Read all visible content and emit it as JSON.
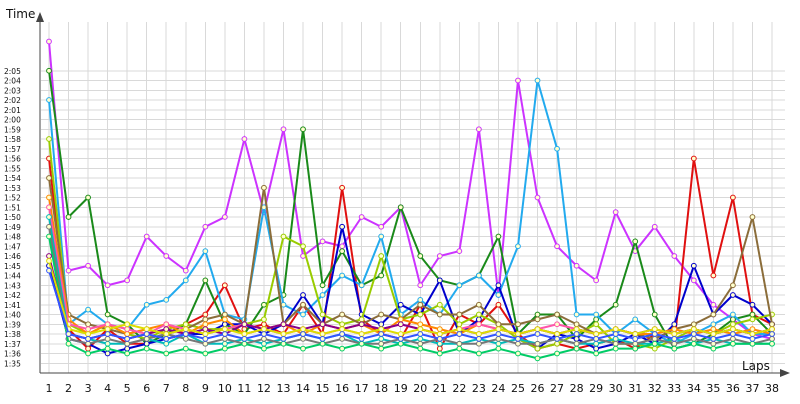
{
  "chart_data": {
    "type": "line",
    "ylabel": "Time",
    "xlabel": "Laps",
    "x": [
      1,
      2,
      3,
      4,
      5,
      6,
      7,
      8,
      9,
      10,
      11,
      12,
      13,
      14,
      15,
      16,
      17,
      18,
      19,
      20,
      21,
      22,
      23,
      24,
      25,
      26,
      27,
      28,
      29,
      30,
      31,
      32,
      33,
      34,
      35,
      36,
      37,
      38
    ],
    "xlim": [
      1,
      38
    ],
    "y_units": "seconds",
    "ylim": [
      94,
      130
    ],
    "y_tick_values": [
      95,
      96,
      97,
      98,
      99,
      100,
      101,
      102,
      103,
      104,
      105,
      106,
      107,
      108,
      109,
      110,
      111,
      112,
      113,
      114,
      115,
      116,
      117,
      118,
      119,
      120,
      121,
      122,
      123,
      124,
      125
    ],
    "y_tick_labels": [
      "1:35",
      "1:36",
      "1:37",
      "1:38",
      "1:39",
      "1:40",
      "1:41",
      "1:42",
      "1:43",
      "1:44",
      "1:45",
      "1:46",
      "1:47",
      "1:48",
      "1:49",
      "1:50",
      "1:51",
      "1:52",
      "1:53",
      "1:54",
      "1:55",
      "1:56",
      "1:57",
      "1:58",
      "1:59",
      "2:00",
      "2:01",
      "2:02",
      "2:03",
      "2:04",
      "2:05"
    ],
    "grid": true,
    "legend": "none",
    "series": [
      {
        "color": "#cc33ff",
        "values": [
          128,
          104.5,
          105,
          103,
          103.5,
          108,
          106,
          104.5,
          109,
          110,
          118,
          110.5,
          119,
          106,
          107.5,
          107,
          110,
          109,
          111,
          103,
          106,
          106.5,
          119,
          102,
          124,
          112,
          107,
          105,
          103.5,
          110.5,
          106.5,
          109,
          106,
          103.5,
          101,
          99.5,
          98,
          97.5
        ]
      },
      {
        "color": "#e01010",
        "values": [
          116,
          98.5,
          96.5,
          98.5,
          97,
          97,
          98,
          99,
          100,
          103,
          98.5,
          99,
          98,
          101,
          98,
          113,
          99.5,
          98,
          97.5,
          101,
          96.5,
          100,
          99,
          101,
          98,
          96.5,
          97,
          96.5,
          97,
          97.5,
          96.5,
          98,
          97,
          116,
          104,
          112,
          100,
          99
        ]
      },
      {
        "color": "#1a8a1a",
        "values": [
          125,
          110,
          112,
          100,
          99,
          97,
          98,
          99,
          103.5,
          99,
          98,
          101,
          102,
          119,
          103,
          106.5,
          103,
          104,
          111,
          106,
          103.5,
          103,
          104,
          108,
          98,
          100,
          100,
          97.5,
          99.5,
          101,
          107.5,
          100,
          96.5,
          97,
          98,
          99.5,
          100,
          98
        ]
      },
      {
        "color": "#22aaee",
        "values": [
          122,
          99,
          100.5,
          99,
          98.5,
          101,
          101.5,
          103.5,
          106.5,
          100,
          99.5,
          111,
          101,
          100,
          102,
          104,
          103,
          108,
          100,
          101.5,
          100,
          103,
          104,
          102,
          107,
          124,
          117,
          100,
          100,
          98,
          99.5,
          98,
          97,
          98,
          99,
          100,
          98,
          98
        ]
      },
      {
        "color": "#0000cc",
        "values": [
          105,
          97.5,
          97,
          96,
          96.5,
          97,
          97.5,
          98,
          98,
          99,
          99,
          98,
          99,
          102,
          99,
          109,
          100,
          99,
          101,
          100,
          103.5,
          98,
          99.5,
          103,
          97.5,
          96.5,
          98,
          97.5,
          96.5,
          97,
          98,
          97,
          99,
          105,
          100,
          102,
          101,
          99
        ]
      },
      {
        "color": "#99cc00",
        "values": [
          118,
          99,
          98,
          99,
          98,
          97.5,
          98.5,
          99,
          98.5,
          98.5,
          99,
          99.5,
          108,
          107,
          100,
          99,
          99.5,
          106,
          99.5,
          100,
          101,
          99,
          100,
          99,
          97.5,
          96.5,
          97,
          98,
          99,
          97,
          97,
          96.5,
          97.5,
          98.5,
          98,
          99,
          99.5,
          100
        ]
      },
      {
        "color": "#8b6d3a",
        "values": [
          114,
          100,
          99,
          98.5,
          98,
          98.5,
          98,
          98.5,
          99.5,
          100,
          99,
          113,
          99,
          101,
          99,
          100,
          99,
          100,
          99.5,
          101,
          100,
          100,
          101,
          99,
          99,
          99.5,
          100,
          99,
          98,
          98.5,
          98,
          97.5,
          98.5,
          99,
          100,
          103,
          110,
          99
        ]
      },
      {
        "color": "#ff8800",
        "values": [
          112,
          99.5,
          98,
          99,
          98,
          98.5,
          99,
          98,
          99,
          99.5,
          98,
          98.5,
          99,
          98,
          99,
          98.5,
          99,
          98,
          99.5,
          99,
          98.5,
          98,
          99,
          98.5,
          98,
          98.5,
          98,
          98.5,
          98,
          98.5,
          98,
          98,
          98.5,
          98,
          98.5,
          98,
          98.5,
          98
        ]
      },
      {
        "color": "#ff55aa",
        "values": [
          111,
          99,
          98.5,
          99,
          98.5,
          98,
          99,
          98.5,
          98,
          98.5,
          99,
          98.5,
          98,
          98.5,
          98,
          98.5,
          98,
          98.5,
          99,
          98.5,
          98,
          98.5,
          99,
          98.5,
          98,
          98.5,
          99,
          98.5,
          98,
          98.5,
          98,
          98.5,
          98,
          98.5,
          98,
          98.5,
          98,
          98.5
        ]
      },
      {
        "color": "#00bbbb",
        "values": [
          110,
          98,
          97.5,
          97,
          97,
          97.5,
          97,
          98,
          97,
          97,
          97.5,
          97,
          97.5,
          98,
          97.5,
          98,
          97,
          97.5,
          97,
          97.5,
          97,
          97,
          97.5,
          97,
          97.5,
          97,
          97.5,
          97,
          97,
          97.5,
          97,
          97,
          97.5,
          97,
          97.5,
          97,
          97,
          97
        ]
      },
      {
        "color": "#777777",
        "values": [
          109,
          97.5,
          97,
          97.5,
          97,
          97.5,
          98,
          97.5,
          97,
          97.5,
          97,
          97.5,
          97,
          97.5,
          97,
          97.5,
          97,
          97,
          97.5,
          97,
          97.5,
          97,
          97,
          97.5,
          97,
          97,
          97.5,
          97,
          97.5,
          97,
          97,
          97.5,
          97,
          97.5,
          97,
          97.5,
          97,
          97.5
        ]
      },
      {
        "color": "#00cc66",
        "values": [
          108,
          97,
          96,
          96.5,
          96,
          96.5,
          96,
          96.5,
          96,
          96.5,
          97,
          96.5,
          97,
          96.5,
          97,
          96.5,
          97,
          96.5,
          97,
          96.5,
          96,
          96.5,
          96,
          96.5,
          96,
          95.5,
          96,
          96.5,
          96,
          96.5,
          96.5,
          97,
          96.5,
          97,
          96.5,
          97,
          97,
          97
        ]
      },
      {
        "color": "#880088",
        "values": [
          106,
          98,
          97.5,
          98,
          97.5,
          98,
          98.5,
          98,
          98.5,
          98,
          99,
          98.5,
          99,
          98.5,
          99,
          98.5,
          99,
          98.5,
          99,
          98.5,
          98,
          98.5,
          98,
          98.5,
          98,
          98.5,
          98,
          98.5,
          98,
          98.5,
          98,
          98.5,
          98,
          98.5,
          98,
          98.5,
          98,
          98.5
        ]
      },
      {
        "color": "#dddd00",
        "values": [
          105.5,
          98.5,
          98,
          98.5,
          99,
          98.5,
          98,
          98.5,
          98,
          98.5,
          98,
          98.5,
          98,
          98.5,
          98,
          98.5,
          98,
          98.5,
          98,
          98.5,
          98,
          98.5,
          98,
          98.5,
          98,
          98.5,
          98,
          98.5,
          98,
          98.5,
          98,
          98.5,
          98,
          98.5,
          98,
          98.5,
          98,
          98.5
        ]
      },
      {
        "color": "#3355ff",
        "values": [
          104.5,
          98,
          97.5,
          98,
          97.5,
          98,
          97.5,
          98,
          97.5,
          98,
          97.5,
          98,
          97.5,
          98,
          97.5,
          98,
          97.5,
          98,
          97.5,
          98,
          97.5,
          98,
          97.5,
          98,
          97.5,
          98,
          97.5,
          98,
          97.5,
          98,
          97.5,
          98,
          97.5,
          98,
          97.5,
          98,
          97.5,
          98
        ]
      }
    ]
  }
}
